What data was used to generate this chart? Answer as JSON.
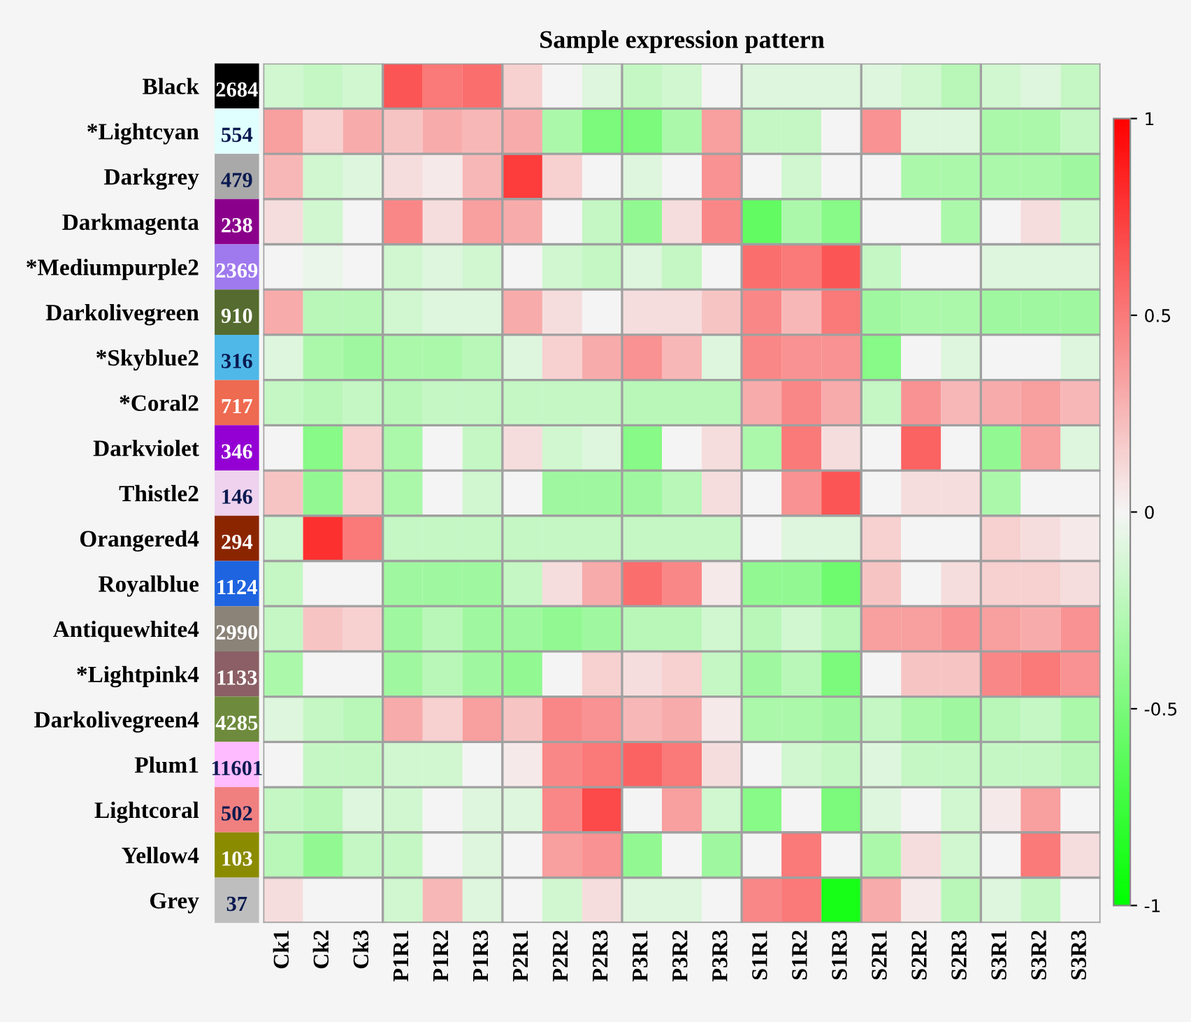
{
  "chart_data": {
    "type": "heatmap",
    "title": "Sample expression pattern",
    "categories": [
      "Ck1",
      "Ck2",
      "Ck3",
      "P1R1",
      "P1R2",
      "P1R3",
      "P2R1",
      "P2R2",
      "P2R3",
      "P3R1",
      "P3R2",
      "P3R3",
      "S1R1",
      "S1R2",
      "S1R3",
      "S2R1",
      "S2R2",
      "S2R3",
      "S3R1",
      "S3R2",
      "S3R3"
    ],
    "y_categories": [
      "Black",
      "*Lightcyan",
      "Darkgrey",
      "Darkmagenta",
      "*Mediumpurple2",
      "Darkolivegreen",
      "*Skyblue2",
      "*Coral2",
      "Darkviolet",
      "Thistle2",
      "Orangered4",
      "Royalblue",
      "Antiquewhite4",
      "*Lightpink4",
      "Darkolivegreen4",
      "Plum1",
      "Lightcoral",
      "Yellow4",
      "Grey"
    ],
    "y2_categories": [
      "2684",
      "554",
      "479",
      "238",
      "2369",
      "910",
      "316",
      "717",
      "346",
      "146",
      "294",
      "1124",
      "2990",
      "1133",
      "4285",
      "11601",
      "502",
      "103",
      "37"
    ],
    "colors": [
      "#000000",
      "#e0ffff",
      "#a9a9a9",
      "#8b008b",
      "#9f79ee",
      "#556b2f",
      "#4fb8e8",
      "#ee6a50",
      "#9400d3",
      "#eed2ee",
      "#8b2500",
      "#1e64e0",
      "#8b8378",
      "#8b5f65",
      "#6e8b3d",
      "#ffbbff",
      "#f08080",
      "#8b8b00",
      "#bebebe"
    ],
    "cells": [
      [
        -0.15,
        -0.2,
        -0.15,
        0.65,
        0.5,
        0.55,
        0.15,
        0,
        -0.1,
        -0.2,
        -0.15,
        0,
        -0.1,
        -0.1,
        -0.1,
        -0.1,
        -0.15,
        -0.25,
        -0.15,
        -0.1,
        -0.2
      ],
      [
        0.35,
        0.15,
        0.3,
        0.2,
        0.3,
        0.25,
        0.3,
        -0.3,
        -0.5,
        -0.5,
        -0.3,
        0.35,
        -0.2,
        -0.2,
        0,
        0.4,
        -0.1,
        -0.1,
        -0.3,
        -0.3,
        -0.2
      ],
      [
        0.25,
        -0.15,
        -0.1,
        0.1,
        0.05,
        0.25,
        0.75,
        0.15,
        0,
        -0.1,
        0,
        0.4,
        0,
        -0.15,
        0,
        0,
        -0.3,
        -0.3,
        -0.3,
        -0.3,
        -0.35
      ],
      [
        0.1,
        -0.15,
        0,
        0.45,
        0.1,
        0.35,
        0.3,
        0,
        -0.2,
        -0.4,
        0.1,
        0.45,
        -0.6,
        -0.3,
        -0.45,
        0,
        0,
        -0.3,
        0,
        0.1,
        -0.15
      ],
      [
        0,
        -0.05,
        0,
        -0.15,
        -0.1,
        -0.15,
        0,
        -0.15,
        -0.2,
        -0.1,
        -0.2,
        0,
        0.55,
        0.5,
        0.65,
        -0.2,
        0,
        0,
        -0.1,
        -0.1,
        -0.1
      ],
      [
        0.3,
        -0.25,
        -0.25,
        -0.15,
        -0.1,
        -0.1,
        0.3,
        0.1,
        0,
        0.1,
        0.1,
        0.2,
        0.45,
        0.25,
        0.5,
        -0.35,
        -0.3,
        -0.3,
        -0.35,
        -0.35,
        -0.35
      ],
      [
        -0.1,
        -0.3,
        -0.35,
        -0.3,
        -0.3,
        -0.25,
        -0.1,
        0.15,
        0.3,
        0.4,
        0.25,
        -0.1,
        0.45,
        0.4,
        0.4,
        -0.45,
        0,
        -0.1,
        0,
        0,
        -0.1
      ],
      [
        -0.2,
        -0.25,
        -0.2,
        -0.25,
        -0.2,
        -0.2,
        -0.2,
        -0.2,
        -0.2,
        -0.25,
        -0.25,
        -0.25,
        0.3,
        0.45,
        0.3,
        -0.2,
        0.4,
        0.25,
        0.3,
        0.35,
        0.25
      ],
      [
        0,
        -0.45,
        0.15,
        -0.3,
        0,
        -0.2,
        0.1,
        -0.15,
        -0.1,
        -0.45,
        0,
        0.1,
        -0.3,
        0.5,
        0.1,
        0,
        0.6,
        0,
        -0.4,
        0.35,
        -0.1
      ],
      [
        0.2,
        -0.4,
        0.15,
        -0.3,
        0,
        -0.15,
        0,
        -0.35,
        -0.35,
        -0.35,
        -0.25,
        0.1,
        0,
        0.4,
        0.65,
        0,
        0.1,
        0.1,
        -0.3,
        0,
        0
      ],
      [
        -0.15,
        0.8,
        0.5,
        -0.2,
        -0.2,
        -0.2,
        -0.2,
        -0.2,
        -0.2,
        -0.2,
        -0.2,
        -0.2,
        0,
        -0.1,
        -0.1,
        0.15,
        0,
        0,
        0.15,
        0.1,
        0.05
      ],
      [
        -0.2,
        0,
        0,
        -0.35,
        -0.35,
        -0.35,
        -0.2,
        0.1,
        0.3,
        0.55,
        0.45,
        0.05,
        -0.4,
        -0.4,
        -0.55,
        0.2,
        0,
        0.1,
        0.15,
        0.15,
        0.1
      ],
      [
        -0.2,
        0.2,
        0.15,
        -0.35,
        -0.25,
        -0.35,
        -0.35,
        -0.4,
        -0.35,
        -0.25,
        -0.25,
        -0.15,
        -0.25,
        -0.15,
        -0.25,
        0.35,
        0.35,
        0.4,
        0.35,
        0.3,
        0.4
      ],
      [
        -0.3,
        0,
        0,
        -0.35,
        -0.25,
        -0.35,
        -0.4,
        0,
        0.15,
        0.1,
        0.15,
        -0.2,
        -0.35,
        -0.25,
        -0.5,
        0,
        0.2,
        0.2,
        0.45,
        0.5,
        0.4
      ],
      [
        -0.1,
        -0.2,
        -0.25,
        0.3,
        0.15,
        0.35,
        0.2,
        0.45,
        0.4,
        0.25,
        0.3,
        0.05,
        -0.3,
        -0.3,
        -0.35,
        -0.2,
        -0.3,
        -0.35,
        -0.25,
        -0.2,
        -0.3
      ],
      [
        0,
        -0.2,
        -0.2,
        -0.15,
        -0.15,
        0,
        0.05,
        0.45,
        0.5,
        0.6,
        0.5,
        0.1,
        0,
        -0.15,
        -0.2,
        -0.1,
        -0.2,
        -0.2,
        -0.2,
        -0.2,
        -0.25
      ],
      [
        -0.2,
        -0.25,
        -0.1,
        -0.15,
        0,
        -0.1,
        -0.1,
        0.45,
        0.7,
        0,
        0.35,
        -0.15,
        -0.45,
        0,
        -0.5,
        -0.1,
        0,
        -0.15,
        0.05,
        0.35,
        0
      ],
      [
        -0.25,
        -0.4,
        -0.2,
        -0.2,
        0,
        -0.1,
        0,
        0.35,
        0.4,
        -0.4,
        0,
        -0.35,
        0,
        0.5,
        0,
        -0.3,
        0.1,
        -0.15,
        0,
        0.5,
        0.1
      ],
      [
        0.1,
        0,
        0,
        -0.15,
        0.25,
        -0.1,
        0,
        -0.15,
        0.1,
        -0.1,
        -0.1,
        0,
        0.45,
        0.5,
        -0.9,
        0.3,
        0.05,
        -0.25,
        -0.1,
        -0.2,
        0
      ]
    ],
    "clim": [
      -1,
      1
    ],
    "cticks": [
      -1,
      -0.5,
      0,
      0.5,
      1
    ]
  }
}
